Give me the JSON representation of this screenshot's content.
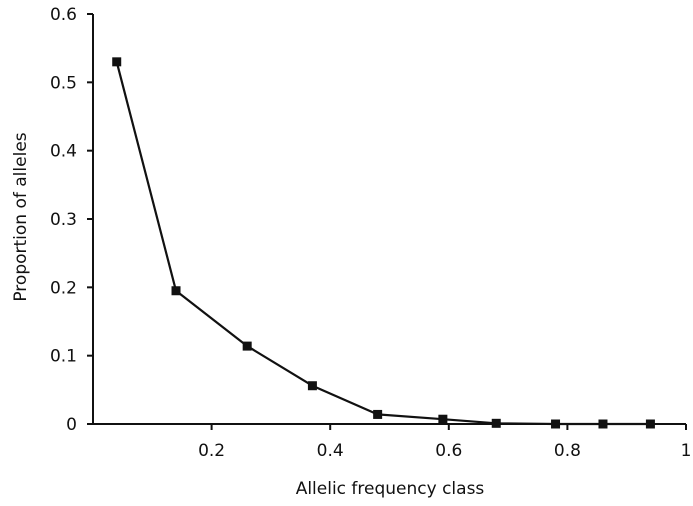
{
  "chart_data": {
    "type": "line",
    "title": "",
    "xlabel": "Allelic frequency class",
    "ylabel": "Proportion of alleles",
    "xlim": [
      0,
      1
    ],
    "ylim": [
      0,
      0.6
    ],
    "x_ticks": [
      {
        "value": 0.2,
        "label": "0.2"
      },
      {
        "value": 0.4,
        "label": "0.4"
      },
      {
        "value": 0.6,
        "label": "0.6"
      },
      {
        "value": 0.8,
        "label": "0.8"
      },
      {
        "value": 1.0,
        "label": "1"
      }
    ],
    "y_ticks": [
      {
        "value": 0,
        "label": "0"
      },
      {
        "value": 0.1,
        "label": "0.1"
      },
      {
        "value": 0.2,
        "label": "0.2"
      },
      {
        "value": 0.3,
        "label": "0.3"
      },
      {
        "value": 0.4,
        "label": "0.4"
      },
      {
        "value": 0.5,
        "label": "0.5"
      },
      {
        "value": 0.6,
        "label": "0.6"
      }
    ],
    "grid": false,
    "legend": "none",
    "series": [
      {
        "x": [
          0.04,
          0.14,
          0.26,
          0.37,
          0.48,
          0.59,
          0.68,
          0.78,
          0.86,
          0.94
        ],
        "values": [
          0.53,
          0.195,
          0.114,
          0.056,
          0.014,
          0.007,
          0.001,
          0.0,
          0.0,
          0.0
        ],
        "color": "#111111",
        "marker": "square"
      }
    ]
  }
}
